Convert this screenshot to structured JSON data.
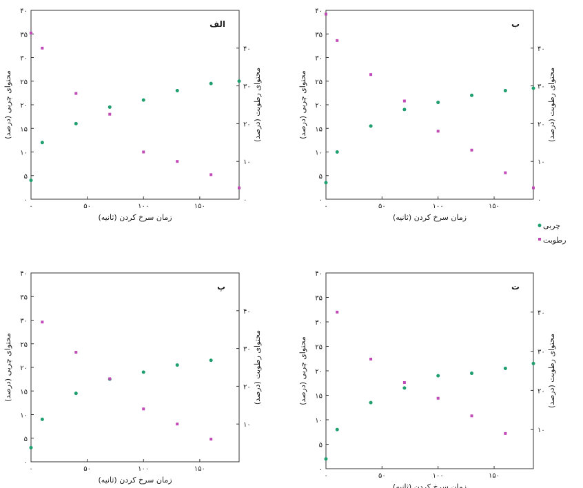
{
  "legend": {
    "items": [
      {
        "label": "چربی",
        "color": "#1f9e6e"
      },
      {
        "label": "رطوبت",
        "color": "#c04ab6"
      }
    ]
  },
  "chart_data": [
    {
      "type": "scatter",
      "panel_label": "الف",
      "xlabel": "زمان سرخ کردن (ثانیه)",
      "ylabel": "محتوای چربی (درصد)",
      "y2label": "محتوای رطوبت (درصد)",
      "xlim": [
        0,
        185
      ],
      "ylim": [
        0,
        40
      ],
      "y2lim": [
        0,
        50
      ],
      "x_ticks": [
        {
          "v": 0,
          "label": "۰"
        },
        {
          "v": 50,
          "label": "۵۰"
        },
        {
          "v": 100,
          "label": "۱۰۰"
        },
        {
          "v": 150,
          "label": "۱۵۰"
        }
      ],
      "y_ticks": [
        {
          "v": 0,
          "label": "۰"
        },
        {
          "v": 5,
          "label": "۵"
        },
        {
          "v": 10,
          "label": "۱۰"
        },
        {
          "v": 15,
          "label": "۱۵"
        },
        {
          "v": 20,
          "label": "۲۰"
        },
        {
          "v": 25,
          "label": "۲۵"
        },
        {
          "v": 30,
          "label": "۳۰"
        },
        {
          "v": 35,
          "label": "۳۵"
        },
        {
          "v": 40,
          "label": "۴۰"
        }
      ],
      "y2_ticks": [
        {
          "v": 0,
          "label": "۰"
        },
        {
          "v": 10,
          "label": "۱۰"
        },
        {
          "v": 20,
          "label": "۲۰"
        },
        {
          "v": 30,
          "label": "۳۰"
        },
        {
          "v": 40,
          "label": "۴۰"
        }
      ],
      "series": [
        {
          "name": "چربی",
          "axis": "left",
          "color": "#1f9e6e",
          "x": [
            0,
            10,
            40,
            70,
            100,
            130,
            160,
            185
          ],
          "y": [
            4,
            12,
            16,
            19.5,
            21,
            23,
            24.5,
            25
          ]
        },
        {
          "name": "رطوبت",
          "axis": "right",
          "color": "#c04ab6",
          "x": [
            0,
            10,
            40,
            70,
            100,
            130,
            160,
            185
          ],
          "y": [
            44,
            40,
            28,
            22.5,
            12.5,
            10,
            6.5,
            3
          ]
        }
      ]
    },
    {
      "type": "scatter",
      "panel_label": "ب",
      "xlabel": "زمان سرخ کردن (ثانیه)",
      "ylabel": "محتوای چربی (درصد)",
      "y2label": "محتوای رطوبت (درصد)",
      "xlim": [
        0,
        185
      ],
      "ylim": [
        0,
        40
      ],
      "y2lim": [
        0,
        50
      ],
      "x_ticks": [
        {
          "v": 0,
          "label": "۰"
        },
        {
          "v": 50,
          "label": "۵۰"
        },
        {
          "v": 100,
          "label": "۱۰۰"
        },
        {
          "v": 150,
          "label": "۱۵۰"
        }
      ],
      "y_ticks": [
        {
          "v": 0,
          "label": "۰"
        },
        {
          "v": 5,
          "label": "۵"
        },
        {
          "v": 10,
          "label": "۱۰"
        },
        {
          "v": 15,
          "label": "۱۵"
        },
        {
          "v": 20,
          "label": "۲۰"
        },
        {
          "v": 25,
          "label": "۲۵"
        },
        {
          "v": 30,
          "label": "۳۰"
        },
        {
          "v": 35,
          "label": "۳۵"
        },
        {
          "v": 40,
          "label": "۴۰"
        }
      ],
      "y2_ticks": [
        {
          "v": 0,
          "label": "۰"
        },
        {
          "v": 10,
          "label": "۱۰"
        },
        {
          "v": 20,
          "label": "۲۰"
        },
        {
          "v": 30,
          "label": "۳۰"
        },
        {
          "v": 40,
          "label": "۴۰"
        }
      ],
      "series": [
        {
          "name": "چربی",
          "axis": "left",
          "color": "#1f9e6e",
          "x": [
            0,
            10,
            40,
            70,
            100,
            130,
            160,
            185
          ],
          "y": [
            3.5,
            10,
            15.5,
            19,
            20.5,
            22,
            23,
            23.5
          ]
        },
        {
          "name": "رطوبت",
          "axis": "right",
          "color": "#c04ab6",
          "x": [
            0,
            10,
            40,
            70,
            100,
            130,
            160,
            185
          ],
          "y": [
            49,
            42,
            33,
            26,
            18,
            13,
            7,
            3
          ]
        }
      ]
    },
    {
      "type": "scatter",
      "panel_label": "پ",
      "xlabel": "زمان سرخ کردن (ثانیه)",
      "ylabel": "محتوای چربی (درصد)",
      "y2label": "محتوای رطوبت (درصد)",
      "xlim": [
        0,
        185
      ],
      "ylim": [
        0,
        40
      ],
      "y2lim": [
        0,
        50
      ],
      "x_ticks": [
        {
          "v": 0,
          "label": "۰"
        },
        {
          "v": 50,
          "label": "۵۰"
        },
        {
          "v": 100,
          "label": "۱۰۰"
        },
        {
          "v": 150,
          "label": "۱۵۰"
        }
      ],
      "y_ticks": [
        {
          "v": 0,
          "label": "۰"
        },
        {
          "v": 5,
          "label": "۵"
        },
        {
          "v": 10,
          "label": "۱۰"
        },
        {
          "v": 15,
          "label": "۱۵"
        },
        {
          "v": 20,
          "label": "۲۰"
        },
        {
          "v": 25,
          "label": "۲۵"
        },
        {
          "v": 30,
          "label": "۳۰"
        },
        {
          "v": 35,
          "label": "۳۵"
        },
        {
          "v": 40,
          "label": "۴۰"
        }
      ],
      "y2_ticks": [
        {
          "v": 10,
          "label": "۱۰"
        },
        {
          "v": 20,
          "label": "۲۰"
        },
        {
          "v": 30,
          "label": "۳۰"
        },
        {
          "v": 40,
          "label": "۴۰"
        }
      ],
      "series": [
        {
          "name": "چربی",
          "axis": "left",
          "color": "#1f9e6e",
          "x": [
            0,
            10,
            40,
            70,
            100,
            130,
            160
          ],
          "y": [
            3,
            9,
            14.5,
            17.5,
            19,
            20.5,
            21.5
          ]
        },
        {
          "name": "رطوبت",
          "axis": "right",
          "color": "#c04ab6",
          "x": [
            0,
            10,
            40,
            70,
            100,
            130,
            160
          ],
          "y": [
            null,
            37,
            29,
            22,
            14,
            10,
            6
          ]
        }
      ]
    },
    {
      "type": "scatter",
      "panel_label": "ت",
      "xlabel": "زمان سرخ کردن (ثانیه)",
      "ylabel": "محتوای چربی (درصد)",
      "y2label": "محتوای رطوبت (درصد)",
      "xlim": [
        0,
        185
      ],
      "ylim": [
        0,
        40
      ],
      "y2lim": [
        0,
        50
      ],
      "x_ticks": [
        {
          "v": 0,
          "label": "۰"
        },
        {
          "v": 50,
          "label": "۵۰"
        },
        {
          "v": 100,
          "label": "۱۰۰"
        },
        {
          "v": 150,
          "label": "۱۵۰"
        }
      ],
      "y_ticks": [
        {
          "v": 0,
          "label": "۰"
        },
        {
          "v": 5,
          "label": "۵"
        },
        {
          "v": 10,
          "label": "۱۰"
        },
        {
          "v": 15,
          "label": "۱۵"
        },
        {
          "v": 20,
          "label": "۲۰"
        },
        {
          "v": 25,
          "label": "۲۵"
        },
        {
          "v": 30,
          "label": "۳۰"
        },
        {
          "v": 35,
          "label": "۳۵"
        },
        {
          "v": 40,
          "label": "۴۰"
        }
      ],
      "y2_ticks": [
        {
          "v": 10,
          "label": "۱۰"
        },
        {
          "v": 20,
          "label": "۲۰"
        },
        {
          "v": 30,
          "label": "۳۰"
        },
        {
          "v": 40,
          "label": "۴۰"
        }
      ],
      "series": [
        {
          "name": "چربی",
          "axis": "left",
          "color": "#1f9e6e",
          "x": [
            0,
            10,
            40,
            70,
            100,
            130,
            160,
            185
          ],
          "y": [
            2,
            8,
            13.5,
            16.5,
            19,
            19.5,
            20.5,
            21.5
          ]
        },
        {
          "name": "رطوبت",
          "axis": "right",
          "color": "#c04ab6",
          "x": [
            0,
            10,
            40,
            70,
            100,
            130,
            160
          ],
          "y": [
            null,
            40,
            28,
            22,
            18,
            13.5,
            9
          ]
        }
      ]
    }
  ]
}
